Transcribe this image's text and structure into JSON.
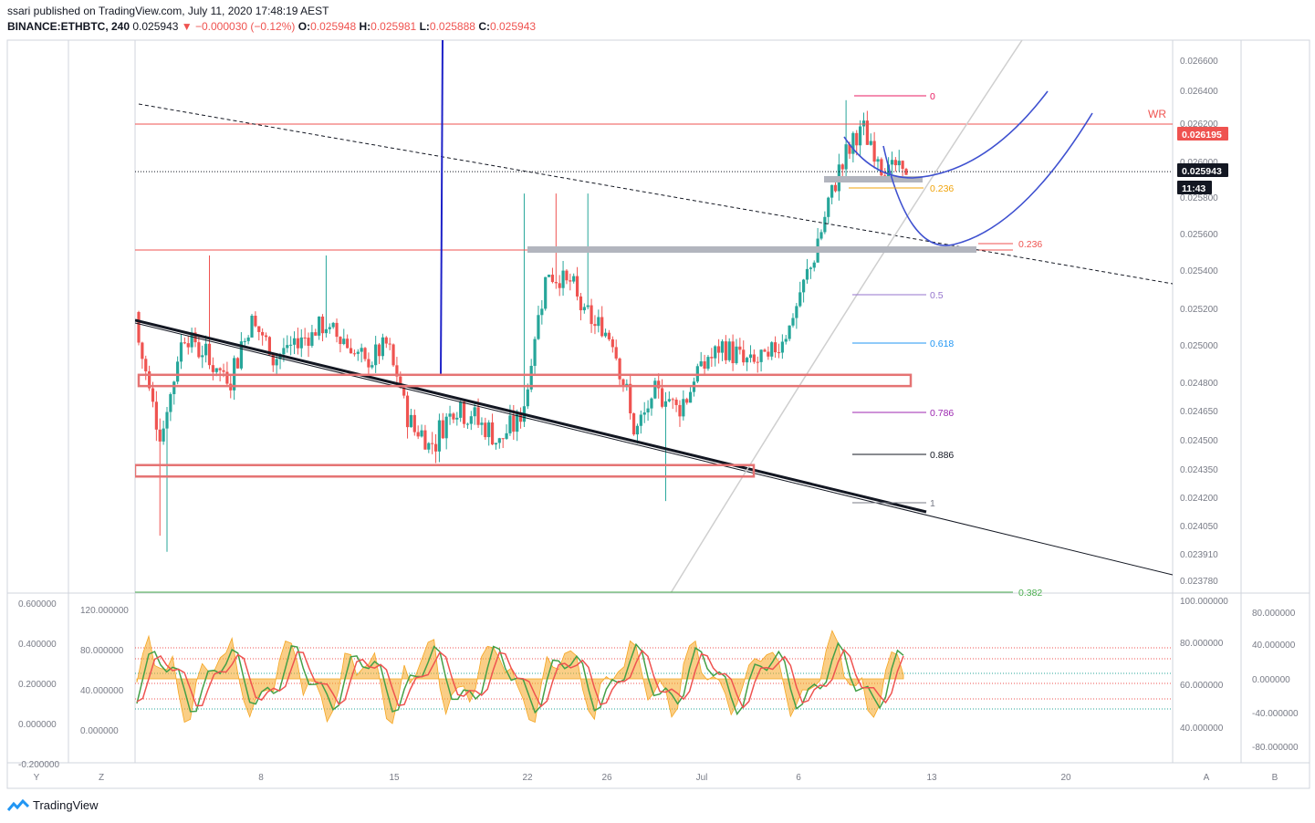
{
  "header": {
    "published": "ssari published on TradingView.com, July 11, 2020 17:48:19 AEST",
    "symbol": "BINANCE:ETHBTC, 240",
    "last": "0.025943",
    "change": "▼ −0.000030 (−0.12%)",
    "o_label": "O:",
    "o": "0.025948",
    "h_label": "H:",
    "h": "0.025981",
    "l_label": "L:",
    "l": "0.025888",
    "c_label": "C:",
    "c": "0.025943"
  },
  "footer": {
    "brand": "TradingView"
  },
  "bottom_buttons": {
    "y": "Y",
    "z": "Z",
    "a": "A",
    "b": "B"
  },
  "price_axis": {
    "ticks": [
      "0.026600",
      "0.026400",
      "0.026200",
      "0.026000",
      "0.025800",
      "0.025600",
      "0.025400",
      "0.025200",
      "0.025000",
      "0.024800",
      "0.024650",
      "0.024500",
      "0.024350",
      "0.024200",
      "0.024050",
      "0.023910",
      "0.023780"
    ],
    "badges": [
      {
        "text": "0.026195",
        "bg": "#ef5350",
        "fg": "#ffffff"
      },
      {
        "text": "0.025943",
        "bg": "#131722",
        "fg": "#ffffff"
      },
      {
        "text": "11:43",
        "bg": "#131722",
        "fg": "#ffffff"
      }
    ]
  },
  "time_axis": {
    "labels": [
      "8",
      "15",
      "22",
      "26",
      "Jul",
      "6",
      "13",
      "20"
    ]
  },
  "chart_labels": {
    "wr": "WR",
    "fib": [
      "0",
      "0.236",
      "0.236",
      "0.5",
      "0.618",
      "0.786",
      "0.886",
      "1",
      "0.382"
    ],
    "fib_colors": [
      "#e91e63",
      "#f0a30a",
      "#ef5350",
      "#9575cd",
      "#2196f3",
      "#9c27b0",
      "#131722",
      "#787b86",
      "#4caf50"
    ]
  },
  "indicator": {
    "left_ticks": [
      "0.600000",
      "0.400000",
      "0.200000",
      "0.000000",
      "-0.200000"
    ],
    "inner_left_ticks": [
      "120.000000",
      "80.000000",
      "40.000000",
      "0.000000"
    ],
    "inner_right_ticks": [
      "100.000000",
      "80.000000",
      "60.000000",
      "40.000000"
    ],
    "right_ticks": [
      "80.000000",
      "40.000000",
      "0.000000",
      "-40.000000",
      "-80.000000"
    ]
  },
  "colors": {
    "up": "#26a69a",
    "down": "#ef5350",
    "zone": "#e57373",
    "curve": "#3f51d0",
    "trend": "#131722"
  },
  "chart_data": {
    "type": "candlestick",
    "symbol": "BINANCE:ETHBTC",
    "interval": "240",
    "ylim": [
      0.02372,
      0.02668
    ],
    "x_labels": [
      "8",
      "15",
      "22",
      "26",
      "Jul",
      "6",
      "13",
      "20"
    ],
    "key_levels": {
      "wr": 0.026195,
      "last": 0.025943
    },
    "fib_levels": [
      {
        "label": "0",
        "price": 0.02636
      },
      {
        "label": "0.236",
        "price": 0.02587
      },
      {
        "label": "0.236",
        "price": 0.02555
      },
      {
        "label": "0.5",
        "price": 0.02528
      },
      {
        "label": "0.618",
        "price": 0.02502
      },
      {
        "label": "0.786",
        "price": 0.02464
      },
      {
        "label": "0.886",
        "price": 0.02442
      },
      {
        "label": "1",
        "price": 0.0242
      },
      {
        "label": "0.382",
        "price": 0.02372
      }
    ],
    "zones": [
      {
        "from": 0.02484,
        "to": 0.02478
      },
      {
        "from": 0.02437,
        "to": 0.02431
      }
    ],
    "shape": [
      [
        0.02518,
        0.02484
      ],
      [
        0.02427,
        0.02475
      ],
      [
        0.02485,
        0.0253
      ],
      [
        0.02505,
        0.02481
      ],
      [
        0.02462,
        0.025
      ],
      [
        0.0251,
        0.0252
      ],
      [
        0.0249,
        0.02496
      ],
      [
        0.02512,
        0.0249
      ],
      [
        0.025,
        0.0252
      ],
      [
        0.02505,
        0.02505
      ],
      [
        0.02488,
        0.0249
      ],
      [
        0.02505,
        0.02495
      ],
      [
        0.02478,
        0.0244
      ],
      [
        0.02452,
        0.02443
      ],
      [
        0.02468,
        0.0247
      ],
      [
        0.02455,
        0.02465
      ],
      [
        0.02443,
        0.02455
      ],
      [
        0.0245,
        0.02475
      ],
      [
        0.0254,
        0.02535
      ],
      [
        0.0254,
        0.0253
      ],
      [
        0.02515,
        0.0251
      ],
      [
        0.02505,
        0.02505
      ],
      [
        0.0246,
        0.02445
      ],
      [
        0.0247,
        0.0248
      ],
      [
        0.0247,
        0.02465
      ],
      [
        0.0248,
        0.025
      ],
      [
        0.02505,
        0.02492
      ],
      [
        0.0249,
        0.0249
      ],
      [
        0.02495,
        0.02492
      ],
      [
        0.0251,
        0.0252
      ],
      [
        0.0252,
        0.02582
      ],
      [
        0.02575,
        0.02615
      ],
      [
        0.0263,
        0.02605
      ],
      [
        0.026,
        0.02594
      ],
      [
        0.02594,
        0.02594
      ]
    ]
  }
}
